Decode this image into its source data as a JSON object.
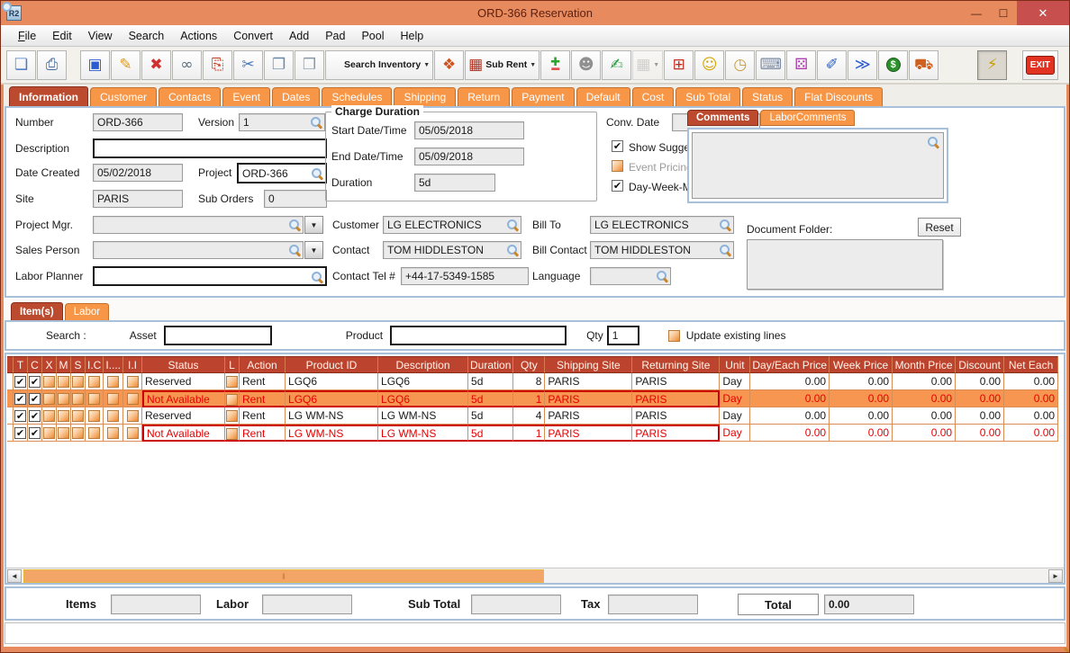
{
  "window": {
    "title": "ORD-366 Reservation",
    "app_badge": "R2",
    "controls": {
      "minimize": "—",
      "maximize": "☐",
      "close": "✕"
    }
  },
  "menu": {
    "items": [
      "File",
      "Edit",
      "View",
      "Search",
      "Actions",
      "Convert",
      "Add",
      "Pad",
      "Pool",
      "Help"
    ]
  },
  "toolbar": {
    "buttons": [
      {
        "name": "new-document",
        "glyph": "❏",
        "color": "#4a79c0"
      },
      {
        "name": "print",
        "glyph": "⎙",
        "color": "#4a6f9e",
        "gap_after": "small"
      },
      {
        "name": "save",
        "glyph": "▣",
        "color": "#2a5bd0"
      },
      {
        "name": "edit-pencil",
        "glyph": "✎",
        "color": "#e09a18"
      },
      {
        "name": "delete",
        "glyph": "✖",
        "color": "#d03030"
      },
      {
        "name": "find-binoculars",
        "glyph": "∞",
        "color": "#5a6f80"
      },
      {
        "name": "export-document",
        "glyph": "⎘",
        "color": "#c23a20"
      },
      {
        "name": "cut",
        "glyph": "✂",
        "color": "#4a7ab8"
      },
      {
        "name": "copy",
        "glyph": "❐",
        "color": "#6a88a8"
      },
      {
        "name": "paste",
        "glyph": "❒",
        "color": "#8898a8"
      },
      {
        "name": "search-inventory",
        "mag": true,
        "label": "Search Inventory",
        "dropdown": true
      },
      {
        "name": "shapes-3d",
        "glyph": "❖",
        "color": "#cc5522"
      },
      {
        "name": "sub-rent",
        "glyph": "▦",
        "color": "#b03020",
        "label": "Sub Rent",
        "dropdown": true
      },
      {
        "name": "add-remove",
        "glyph": "✚",
        "color": "#2ba52b",
        "glyph2": "▬",
        "color2": "#e05050"
      },
      {
        "name": "people-query",
        "glyph": "☻",
        "color": "#909090"
      },
      {
        "name": "notepad",
        "glyph": "✍",
        "color": "#2a9a40"
      },
      {
        "name": "calendar",
        "glyph": "▦",
        "color": "#a8a8a8",
        "dropdown": true,
        "disabled": true
      },
      {
        "name": "org-chart",
        "glyph": "⊞",
        "color": "#c03020"
      },
      {
        "name": "smiley",
        "glyph": "☺",
        "color": "#d4a800"
      },
      {
        "name": "folder-clock",
        "glyph": "◷",
        "color": "#c89a3a"
      },
      {
        "name": "keyboard-key",
        "glyph": "⌨",
        "color": "#7a8aa0"
      },
      {
        "name": "cube-stack",
        "glyph": "⚄",
        "color": "#b040b0"
      },
      {
        "name": "notes-edit",
        "glyph": "✐",
        "color": "#2a60c0"
      },
      {
        "name": "forward-dollar",
        "glyph": "≫",
        "color": "#2a5bd0"
      },
      {
        "name": "dollar-notes",
        "glyph": "$",
        "coin": true
      },
      {
        "name": "truck",
        "glyph": "⛟",
        "color": "#d06020",
        "gap_after": "big"
      },
      {
        "name": "lightning",
        "glyph": "⚡",
        "color": "#c8a000",
        "pressed": true
      },
      {
        "name": "exit",
        "label": "EXIT",
        "exit": true
      }
    ]
  },
  "main_tabs": {
    "active": "Information",
    "items": [
      "Information",
      "Customer",
      "Contacts",
      "Event",
      "Dates",
      "Schedules",
      "Shipping",
      "Return",
      "Payment",
      "Default",
      "Cost",
      "Sub Total",
      "Status",
      "Flat Discounts"
    ]
  },
  "form": {
    "number_label": "Number",
    "number": "ORD-366",
    "version_label": "Version",
    "version": "1",
    "description_label": "Description",
    "description": "",
    "date_created_label": "Date Created",
    "date_created": "05/02/2018",
    "project_label": "Project",
    "project": "ORD-366",
    "site_label": "Site",
    "site": "PARIS",
    "sub_orders_label": "Sub Orders",
    "sub_orders": "0",
    "project_mgr_label": "Project Mgr.",
    "project_mgr": "",
    "sales_person_label": "Sales Person",
    "sales_person": "",
    "labor_planner_label": "Labor Planner",
    "labor_planner": "",
    "charge_duration": {
      "title": "Charge Duration",
      "start_label": "Start Date/Time",
      "start": "05/05/2018",
      "end_label": "End Date/Time",
      "end": "05/09/2018",
      "duration_label": "Duration",
      "duration": "5d"
    },
    "conv_date_label": "Conv. Date",
    "conv_date": "",
    "checkboxes": {
      "show_suggestions": {
        "label": "Show Suggestions",
        "checked": true
      },
      "event_pricing": {
        "label": "Event Pricing",
        "checked": false,
        "disabled": true
      },
      "dwm_pricing": {
        "label": "Day-Week-Month Pricing",
        "checked": true
      }
    },
    "customer_label": "Customer",
    "customer": "LG ELECTRONICS",
    "bill_to_label": "Bill To",
    "bill_to": "LG ELECTRONICS",
    "contact_label": "Contact",
    "contact": "TOM HIDDLESTON",
    "bill_contact_label": "Bill Contact",
    "bill_contact": "TOM HIDDLESTON",
    "contact_tel_label": "Contact Tel #",
    "contact_tel": "+44-17-5349-1585",
    "language_label": "Language",
    "language": "",
    "comments_tabs": [
      "Comments",
      "LaborComments"
    ],
    "comments_active_tab": "Comments",
    "comments_text": "",
    "document_folder_label": "Document Folder:",
    "reset_label": "Reset",
    "document_folder": ""
  },
  "items_section": {
    "tabs": [
      "Item(s)",
      "Labor"
    ],
    "active": "Item(s)",
    "search_label": "Search :",
    "asset_label": "Asset",
    "asset": "",
    "product_label": "Product",
    "product": "",
    "qty_label": "Qty",
    "qty": "1",
    "update_checkbox_label": "Update existing lines",
    "update_checked": false
  },
  "table": {
    "columns": [
      "",
      "T",
      "C",
      "X",
      "M",
      "S",
      "I.C",
      "I....",
      "I.I",
      "Status",
      "L",
      "Action",
      "Product ID",
      "Description",
      "Duration",
      "Qty",
      "Shipping Site",
      "Returning Site",
      "Unit",
      "Day/Each Price",
      "Week Price",
      "Month Price",
      "Discount",
      "Net Each"
    ],
    "rows": [
      {
        "state": "normal",
        "checks": [
          "T",
          "C"
        ],
        "l_checked": false,
        "status": "Reserved",
        "action": "Rent",
        "product_id": "LGQ6",
        "description": "LGQ6",
        "duration": "5d",
        "qty": "8",
        "shipping_site": "PARIS",
        "returning_site": "PARIS",
        "unit": "Day",
        "day_each_price": "0.00",
        "week_price": "0.00",
        "month_price": "0.00",
        "discount": "0.00",
        "net_each": "0.00"
      },
      {
        "state": "selected",
        "checks": [
          "T",
          "C"
        ],
        "l_checked": false,
        "status": "Not Available",
        "action": "Rent",
        "product_id": "LGQ6",
        "description": "LGQ6",
        "duration": "5d",
        "qty": "1",
        "shipping_site": "PARIS",
        "returning_site": "PARIS",
        "unit": "Day",
        "day_each_price": "0.00",
        "week_price": "0.00",
        "month_price": "0.00",
        "discount": "0.00",
        "net_each": "0.00"
      },
      {
        "state": "normal",
        "checks": [
          "T",
          "C"
        ],
        "l_checked": false,
        "status": "Reserved",
        "action": "Rent",
        "product_id": "LG WM-NS",
        "description": "LG WM-NS",
        "duration": "5d",
        "qty": "4",
        "shipping_site": "PARIS",
        "returning_site": "PARIS",
        "unit": "Day",
        "day_each_price": "0.00",
        "week_price": "0.00",
        "month_price": "0.00",
        "discount": "0.00",
        "net_each": "0.00"
      },
      {
        "state": "alert",
        "checks": [
          "T",
          "C"
        ],
        "l_checked": false,
        "status": "Not Available",
        "action": "Rent",
        "product_id": "LG WM-NS",
        "description": "LG WM-NS",
        "duration": "5d",
        "qty": "1",
        "shipping_site": "PARIS",
        "returning_site": "PARIS",
        "unit": "Day",
        "day_each_price": "0.00",
        "week_price": "0.00",
        "month_price": "0.00",
        "discount": "0.00",
        "net_each": "0.00"
      }
    ]
  },
  "summary": {
    "items_label": "Items",
    "items": "",
    "labor_label": "Labor",
    "labor": "",
    "sub_total_label": "Sub Total",
    "sub_total": "",
    "tax_label": "Tax",
    "tax": "",
    "total_label": "Total",
    "total": "0.00"
  },
  "colors": {
    "accent_orange": "#E78B5E",
    "tab_orange": "#F79646",
    "active_tab": "#BC4A2E",
    "table_header": "#BC432E",
    "row_selected": "#F79651",
    "alert_red": "#E60000",
    "alert_border": "#CC0000"
  }
}
